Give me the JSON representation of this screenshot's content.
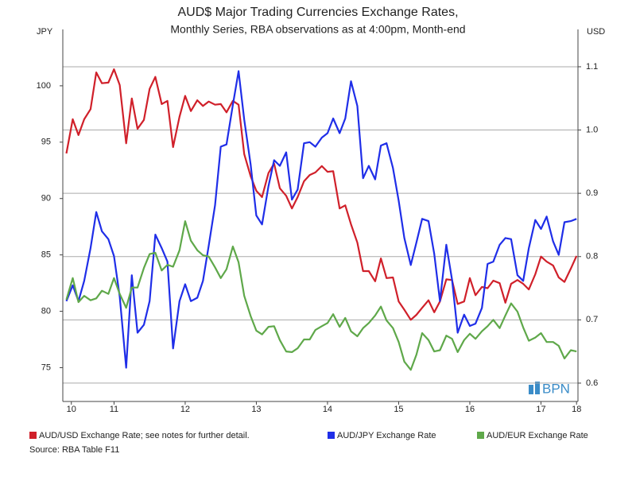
{
  "chart_data": {
    "type": "line",
    "title": "AUD$ Major Trading Currencies Exchange Rates,",
    "subtitle": "Monthly Series, RBA observations as at 4:00pm, Month-end",
    "y_label": "JPY",
    "y2_label": "USD",
    "source": "Source: RBA Table F11",
    "watermark": "BPN",
    "legend": "bottom",
    "grid": true,
    "xlim": [
      10.78,
      18.02
    ],
    "xticks": [
      {
        "value": 10.9,
        "label": "10"
      },
      {
        "value": 11.5,
        "label": "11"
      },
      {
        "value": 12.5,
        "label": "12"
      },
      {
        "value": 13.5,
        "label": "13"
      },
      {
        "value": 14.5,
        "label": "14"
      },
      {
        "value": 15.5,
        "label": "15"
      },
      {
        "value": 16.5,
        "label": "16"
      },
      {
        "value": 17.5,
        "label": "17"
      },
      {
        "value": 18,
        "label": "18"
      }
    ],
    "ylim": [
      72,
      105
    ],
    "yticks": [
      75,
      80,
      85,
      90,
      95,
      100
    ],
    "y2lim": [
      0.571,
      1.159
    ],
    "y2ticks": [
      0.6,
      0.7,
      0.8,
      0.9,
      {
        "value": 1,
        "label": "1.0"
      },
      1.1
    ],
    "x": [
      10.83,
      10.92,
      11,
      11.08,
      11.17,
      11.25,
      11.33,
      11.42,
      11.5,
      11.58,
      11.67,
      11.75,
      11.83,
      11.92,
      12,
      12.08,
      12.17,
      12.25,
      12.33,
      12.42,
      12.5,
      12.58,
      12.67,
      12.75,
      12.83,
      12.92,
      13,
      13.08,
      13.17,
      13.25,
      13.33,
      13.42,
      13.5,
      13.58,
      13.67,
      13.75,
      13.83,
      13.92,
      14,
      14.08,
      14.17,
      14.25,
      14.33,
      14.42,
      14.5,
      14.58,
      14.67,
      14.75,
      14.83,
      14.92,
      15,
      15.08,
      15.17,
      15.25,
      15.33,
      15.42,
      15.5,
      15.58,
      15.67,
      15.75,
      15.83,
      15.92,
      16,
      16.08,
      16.17,
      16.25,
      16.33,
      16.42,
      16.5,
      16.58,
      16.67,
      16.75,
      16.83,
      16.92,
      17,
      17.08,
      17.17,
      17.25,
      17.33,
      17.42,
      17.5,
      17.58,
      17.67,
      17.75,
      17.83,
      17.92,
      18
    ],
    "series": [
      {
        "name": "AUD/USD Exchange Rate; see notes for further detail.",
        "color": "#d0202a",
        "axis": "y2",
        "values": [
          0.963,
          1.017,
          0.992,
          1.017,
          1.033,
          1.091,
          1.074,
          1.075,
          1.096,
          1.071,
          0.979,
          1.05,
          1.002,
          1.016,
          1.065,
          1.084,
          1.041,
          1.046,
          0.973,
          1.021,
          1.054,
          1.03,
          1.047,
          1.038,
          1.045,
          1.04,
          1.041,
          1.028,
          1.046,
          1.04,
          0.962,
          0.927,
          0.904,
          0.894,
          0.932,
          0.947,
          0.908,
          0.896,
          0.876,
          0.894,
          0.919,
          0.929,
          0.933,
          0.943,
          0.934,
          0.935,
          0.876,
          0.881,
          0.851,
          0.822,
          0.777,
          0.777,
          0.761,
          0.797,
          0.766,
          0.767,
          0.729,
          0.716,
          0.7,
          0.708,
          0.719,
          0.731,
          0.712,
          0.729,
          0.764,
          0.763,
          0.725,
          0.729,
          0.766,
          0.739,
          0.752,
          0.75,
          0.762,
          0.758,
          0.727,
          0.757,
          0.763,
          0.757,
          0.748,
          0.772,
          0.8,
          0.792,
          0.786,
          0.767,
          0.76,
          0.781,
          0.801
        ]
      },
      {
        "name": "AUD/JPY Exchange Rate",
        "color": "#1f2ee8",
        "axis": "y",
        "values": [
          80.9,
          82.3,
          80.9,
          82.7,
          85.6,
          88.8,
          87.1,
          86.4,
          84.9,
          81.3,
          75,
          83.2,
          78.1,
          78.8,
          80.9,
          86.8,
          85.6,
          84.4,
          76.7,
          80.9,
          82.4,
          80.9,
          81.2,
          82.7,
          85.8,
          89.4,
          94.6,
          94.8,
          98.3,
          101.3,
          97,
          93,
          88.5,
          87.7,
          91.1,
          93.4,
          92.9,
          94.1,
          89.9,
          90.8,
          94.9,
          95,
          94.6,
          95.4,
          95.8,
          97.1,
          95.8,
          97.1,
          100.4,
          98.2,
          91.8,
          92.9,
          91.7,
          94.7,
          94.9,
          92.7,
          89.8,
          86.5,
          84.1,
          86.1,
          88.2,
          88,
          85.1,
          80.9,
          85.9,
          82.8,
          78.1,
          79.7,
          78.7,
          78.9,
          80.3,
          84.2,
          84.4,
          85.9,
          86.5,
          86.4,
          83.2,
          82.7,
          85.6,
          88.1,
          87.3,
          88.4,
          86.2,
          85,
          87.9,
          88,
          88.2
        ]
      },
      {
        "name": "AUD/EUR Exchange Rate",
        "color": "#5fa84a",
        "axis": "y2",
        "values": [
          0.732,
          0.766,
          0.728,
          0.738,
          0.731,
          0.734,
          0.746,
          0.741,
          0.766,
          0.741,
          0.719,
          0.751,
          0.751,
          0.782,
          0.804,
          0.806,
          0.778,
          0.787,
          0.784,
          0.81,
          0.856,
          0.825,
          0.81,
          0.802,
          0.8,
          0.783,
          0.766,
          0.78,
          0.816,
          0.791,
          0.738,
          0.706,
          0.683,
          0.677,
          0.689,
          0.69,
          0.668,
          0.65,
          0.649,
          0.655,
          0.669,
          0.669,
          0.684,
          0.69,
          0.695,
          0.709,
          0.689,
          0.703,
          0.682,
          0.674,
          0.687,
          0.695,
          0.707,
          0.721,
          0.699,
          0.687,
          0.665,
          0.634,
          0.621,
          0.645,
          0.679,
          0.668,
          0.65,
          0.652,
          0.675,
          0.67,
          0.649,
          0.668,
          0.678,
          0.67,
          0.682,
          0.69,
          0.7,
          0.687,
          0.707,
          0.726,
          0.713,
          0.688,
          0.667,
          0.672,
          0.679,
          0.665,
          0.665,
          0.659,
          0.639,
          0.652,
          0.65
        ]
      }
    ]
  }
}
